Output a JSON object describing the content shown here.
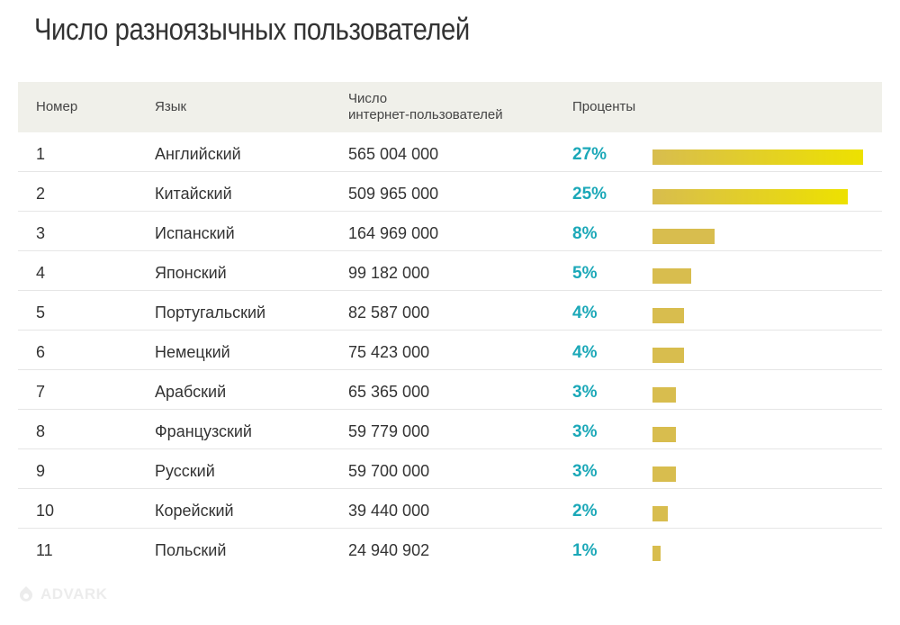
{
  "title": "Число разноязычных пользователей",
  "colors": {
    "percent": "#1ba8b8",
    "bar_start": "#d8bd4e",
    "bar_end": "#ede100",
    "header_bg": "#f0f0ea"
  },
  "headers": {
    "number": "Номер",
    "language": "Язык",
    "users_line1": "Число",
    "users_line2": "интернет-пользователей",
    "percent": "Проценты"
  },
  "logo": {
    "text": "ADVARK",
    "icon": "advark-logo-icon"
  },
  "chart_data": {
    "type": "table",
    "title": "Число разноязычных пользователей",
    "columns": [
      "Номер",
      "Язык",
      "Число интернет-пользователей",
      "Проценты"
    ],
    "max_percent": 27,
    "rows": [
      {
        "rank": "1",
        "language": "Английский",
        "users": "565 004 000",
        "percent_label": "27%",
        "percent": 27
      },
      {
        "rank": "2",
        "language": "Китайский",
        "users": "509 965 000",
        "percent_label": "25%",
        "percent": 25
      },
      {
        "rank": "3",
        "language": "Испанский",
        "users": "164 969 000",
        "percent_label": "8%",
        "percent": 8
      },
      {
        "rank": "4",
        "language": "Японский",
        "users": "99 182 000",
        "percent_label": "5%",
        "percent": 5
      },
      {
        "rank": "5",
        "language": "Португальский",
        "users": "82 587 000",
        "percent_label": "4%",
        "percent": 4
      },
      {
        "rank": "6",
        "language": "Немецкий",
        "users": "75 423 000",
        "percent_label": "4%",
        "percent": 4
      },
      {
        "rank": "7",
        "language": "Арабский",
        "users": "65 365 000",
        "percent_label": "3%",
        "percent": 3
      },
      {
        "rank": "8",
        "language": "Французский",
        "users": "59 779 000",
        "percent_label": "3%",
        "percent": 3
      },
      {
        "rank": "9",
        "language": "Русский",
        "users": "59 700 000",
        "percent_label": "3%",
        "percent": 3
      },
      {
        "rank": "10",
        "language": "Корейский",
        "users": "39 440 000",
        "percent_label": "2%",
        "percent": 2
      },
      {
        "rank": "11",
        "language": "Польский",
        "users": "24 940 902",
        "percent_label": "1%",
        "percent": 1
      }
    ]
  }
}
